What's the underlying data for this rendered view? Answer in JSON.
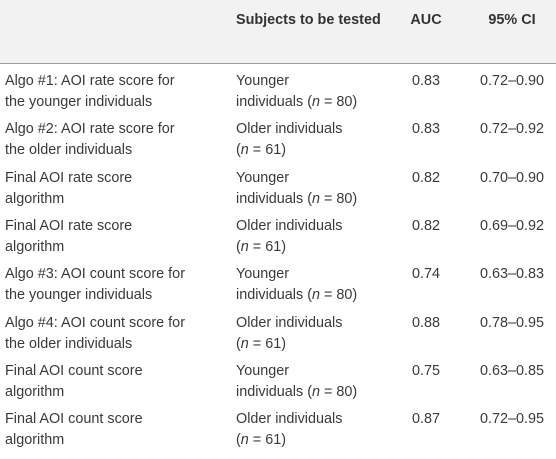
{
  "table": {
    "headers": {
      "col0": "",
      "col1_line1": "Subjects to be",
      "col1_line2": "tested",
      "col2": "AUC",
      "col3": "95% CI"
    },
    "rows": [
      {
        "label1": "Algo #1: AOI rate score for",
        "label2": "the younger individuals",
        "subj1": "Younger",
        "subj2_pre": "individuals (",
        "subj2_n": "n",
        "subj2_post": " = 80)",
        "auc": "0.83",
        "ci": "0.72–0.90"
      },
      {
        "label1": "Algo #2: AOI rate score for",
        "label2": "the older individuals",
        "subj1": "Older individuals",
        "subj2_pre": "(",
        "subj2_n": "n",
        "subj2_post": " = 61)",
        "auc": "0.83",
        "ci": "0.72–0.92"
      },
      {
        "label1": "Final AOI rate score",
        "label2": "algorithm",
        "subj1": "Younger",
        "subj2_pre": "individuals (",
        "subj2_n": "n",
        "subj2_post": " = 80)",
        "auc": "0.82",
        "ci": "0.70–0.90"
      },
      {
        "label1": "Final AOI rate score",
        "label2": "algorithm",
        "subj1": "Older individuals",
        "subj2_pre": "(",
        "subj2_n": "n",
        "subj2_post": " = 61)",
        "auc": "0.82",
        "ci": "0.69–0.92"
      },
      {
        "label1": "Algo #3: AOI count score for",
        "label2": "the younger individuals",
        "subj1": "Younger",
        "subj2_pre": "individuals (",
        "subj2_n": "n",
        "subj2_post": " = 80)",
        "auc": "0.74",
        "ci": "0.63–0.83"
      },
      {
        "label1": "Algo #4: AOI count score for",
        "label2": "the older individuals",
        "subj1": "Older individuals",
        "subj2_pre": "(",
        "subj2_n": "n",
        "subj2_post": " = 61)",
        "auc": "0.88",
        "ci": "0.78–0.95"
      },
      {
        "label1": "Final AOI count score",
        "label2": "algorithm",
        "subj1": "Younger",
        "subj2_pre": "individuals (",
        "subj2_n": "n",
        "subj2_post": " = 80)",
        "auc": "0.75",
        "ci": "0.63–0.85"
      },
      {
        "label1": "Final AOI count score",
        "label2": "algorithm",
        "subj1": "Older individuals",
        "subj2_pre": "(",
        "subj2_n": "n",
        "subj2_post": " = 61)",
        "auc": "0.87",
        "ci": "0.72–0.95"
      }
    ]
  }
}
